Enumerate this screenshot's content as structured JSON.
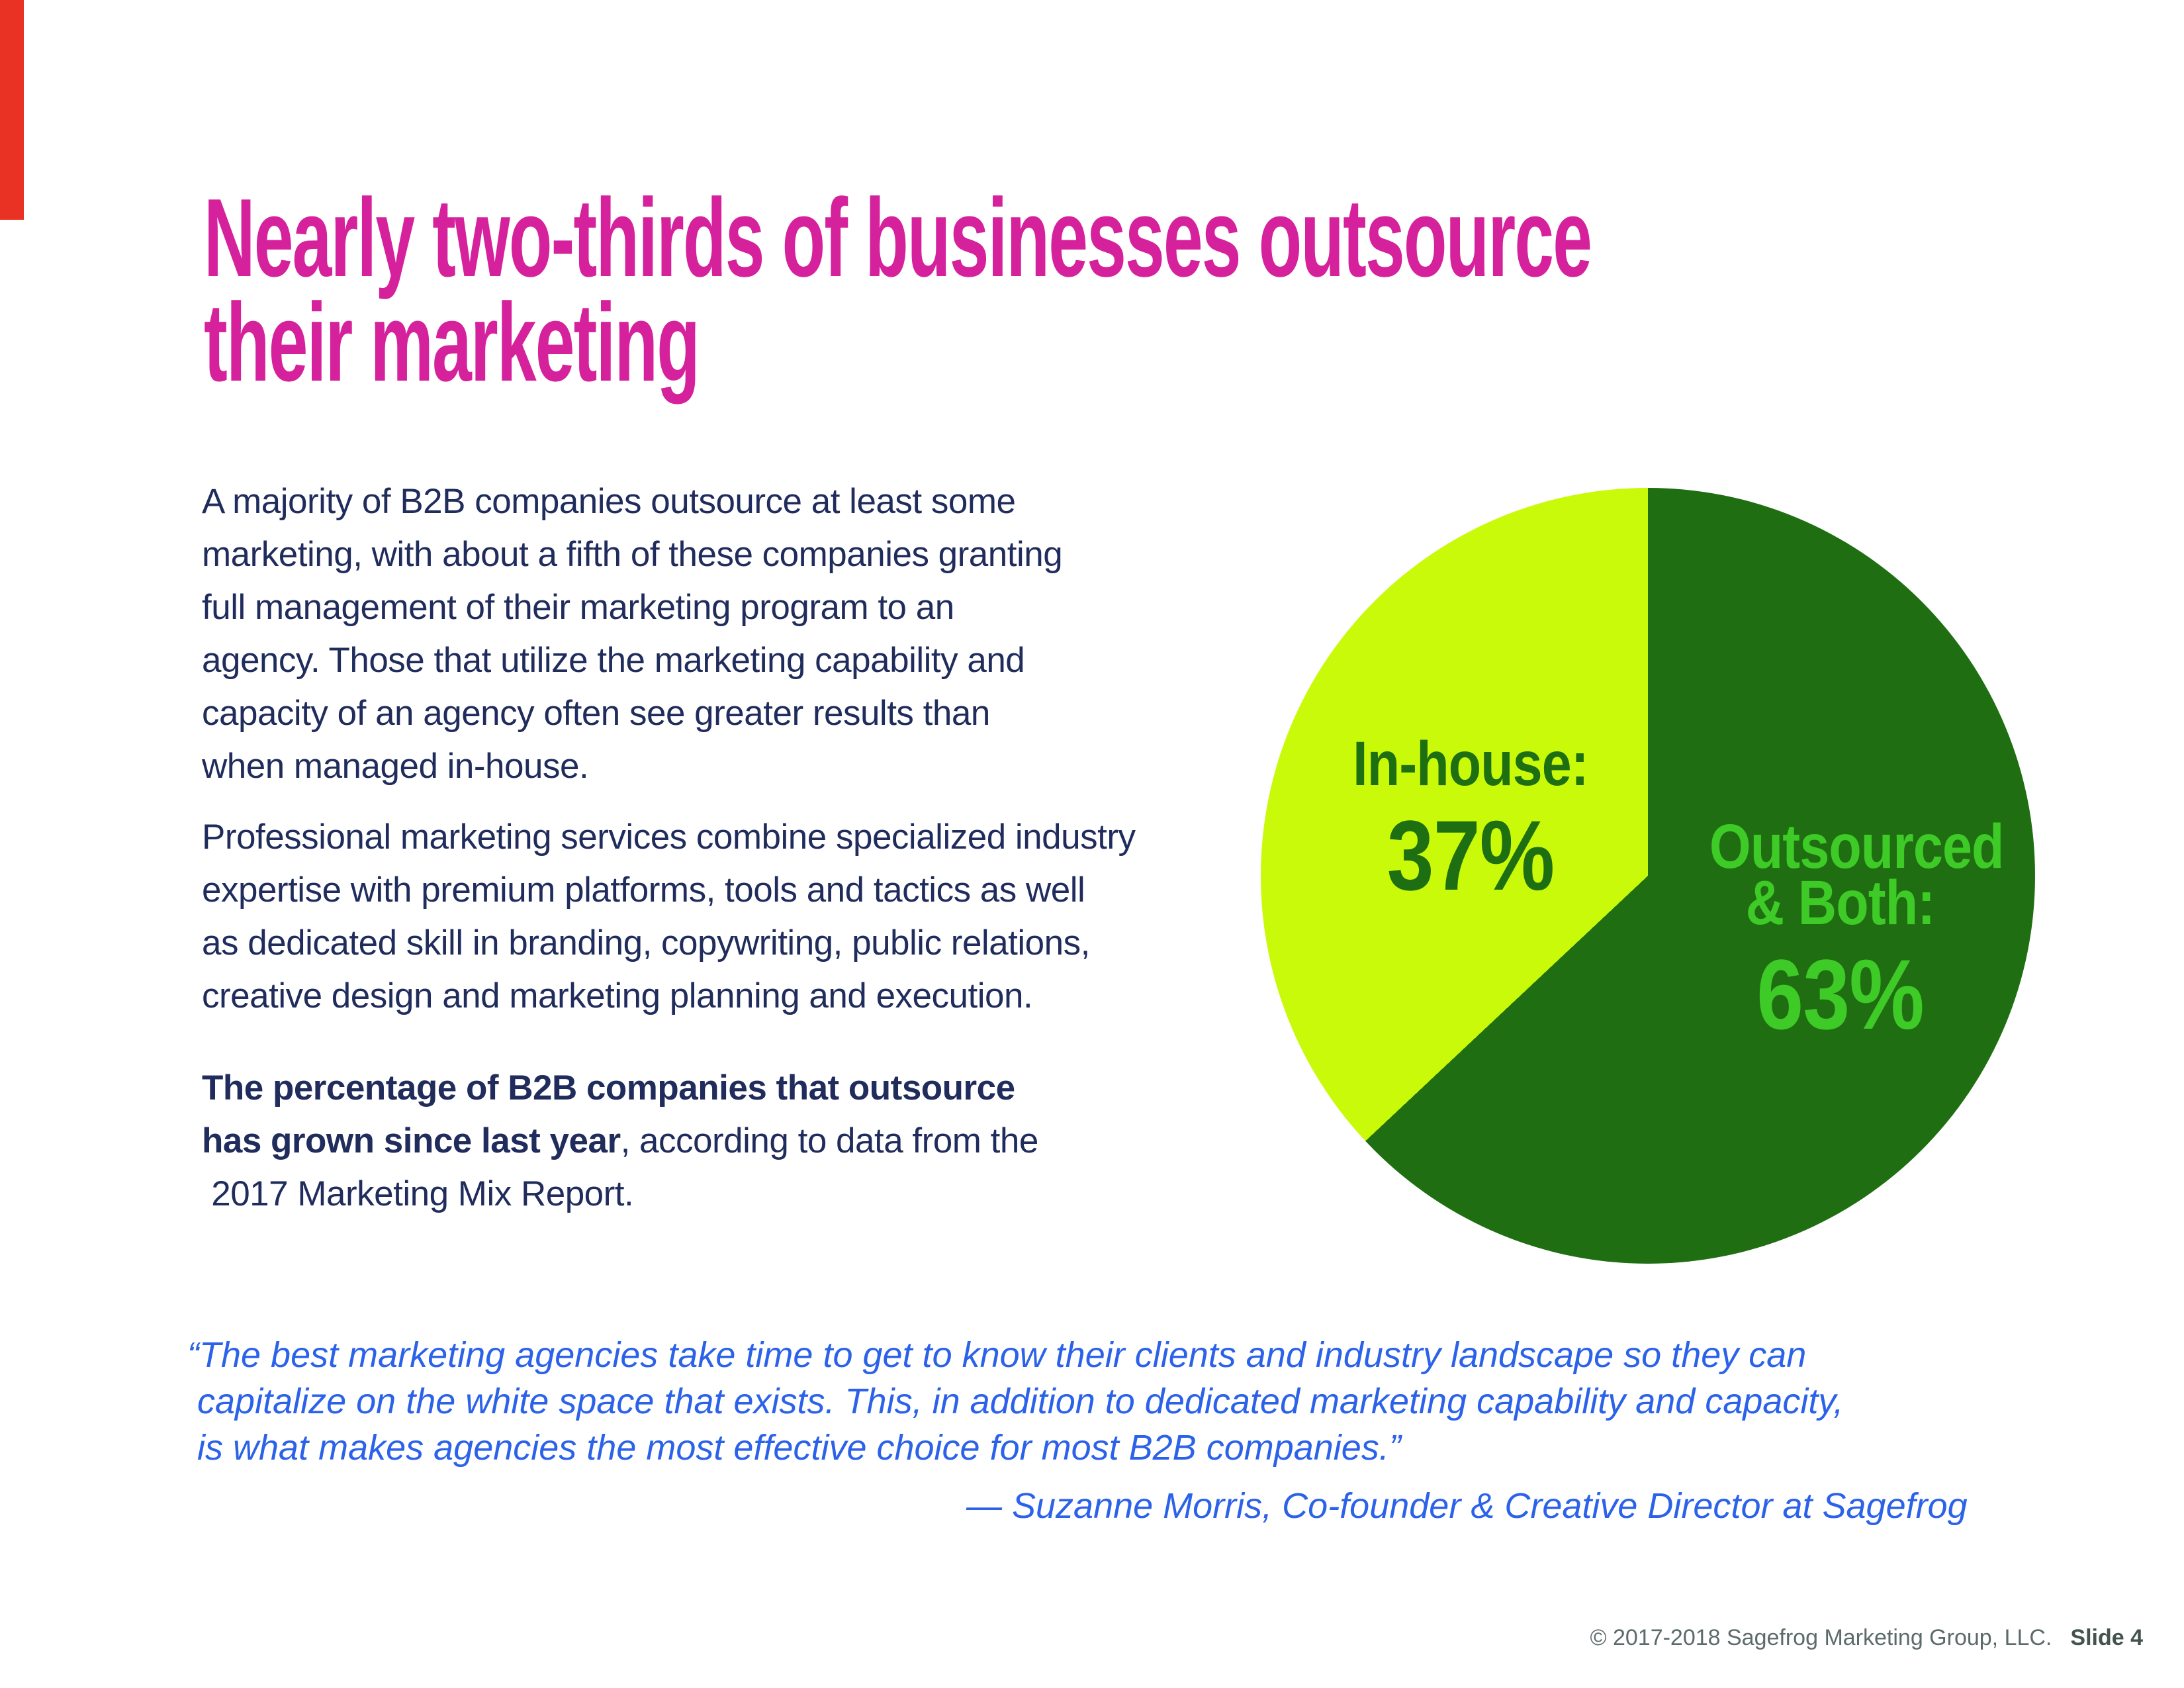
{
  "slide": {
    "background_color": "#ffffff",
    "accent_bar_color": "#e93223"
  },
  "title": {
    "line1": "Nearly two-thirds of businesses outsource",
    "line2": "their marketing",
    "color": "#d6219c"
  },
  "body": {
    "text_color": "#202c5c",
    "p1_lines": [
      "A majority of B2B companies outsource at least some",
      "marketing, with about a fifth of these companies granting",
      "full management of their marketing program to an",
      "agency. Those that utilize the marketing capability and",
      "capacity of an agency often see greater results than",
      "when managed in-house."
    ],
    "p2_lines": [
      "Professional marketing services combine specialized industry",
      "expertise with premium platforms, tools and tactics as well",
      "as dedicated skill in branding, copywriting, public relations,",
      "creative design and marketing planning and execution."
    ],
    "p3": {
      "line1_bold": "The percentage of B2B companies that outsource",
      "line2_bold": "has grown since last year",
      "line2_regular": ", according to data from the",
      "line3": " 2017 Marketing Mix Report."
    }
  },
  "chart_data": {
    "type": "pie",
    "title": "",
    "legend_position": "labels-inside",
    "start_angle_deg": 0,
    "direction": "clockwise",
    "slices": [
      {
        "label_line1": "Outsourced",
        "label_line2": "& Both:",
        "display_value": "63%",
        "value": 63,
        "color": "#1f6f12",
        "label_color": "#3ecb27"
      },
      {
        "label": "In-house:",
        "display_value": "37%",
        "value": 37,
        "color": "#c9fa0a",
        "label_color": "#1e6f12"
      }
    ]
  },
  "quote": {
    "color": "#2b62e9",
    "line1": "“The best marketing agencies take time to get to know their clients and industry landscape so they can",
    "line2": " capitalize on the white space that exists. This, in addition to dedicated marketing capability and capacity,",
    "line3": " is what makes agencies the most effective choice for most B2B companies.”",
    "attribution": "— Suzanne Morris, Co-founder & Creative Director at Sagefrog"
  },
  "footer": {
    "copyright": "© 2017-2018 Sagefrog Marketing Group, LLC.",
    "slide_label": "Slide 4",
    "color": "#5c6a6a"
  }
}
